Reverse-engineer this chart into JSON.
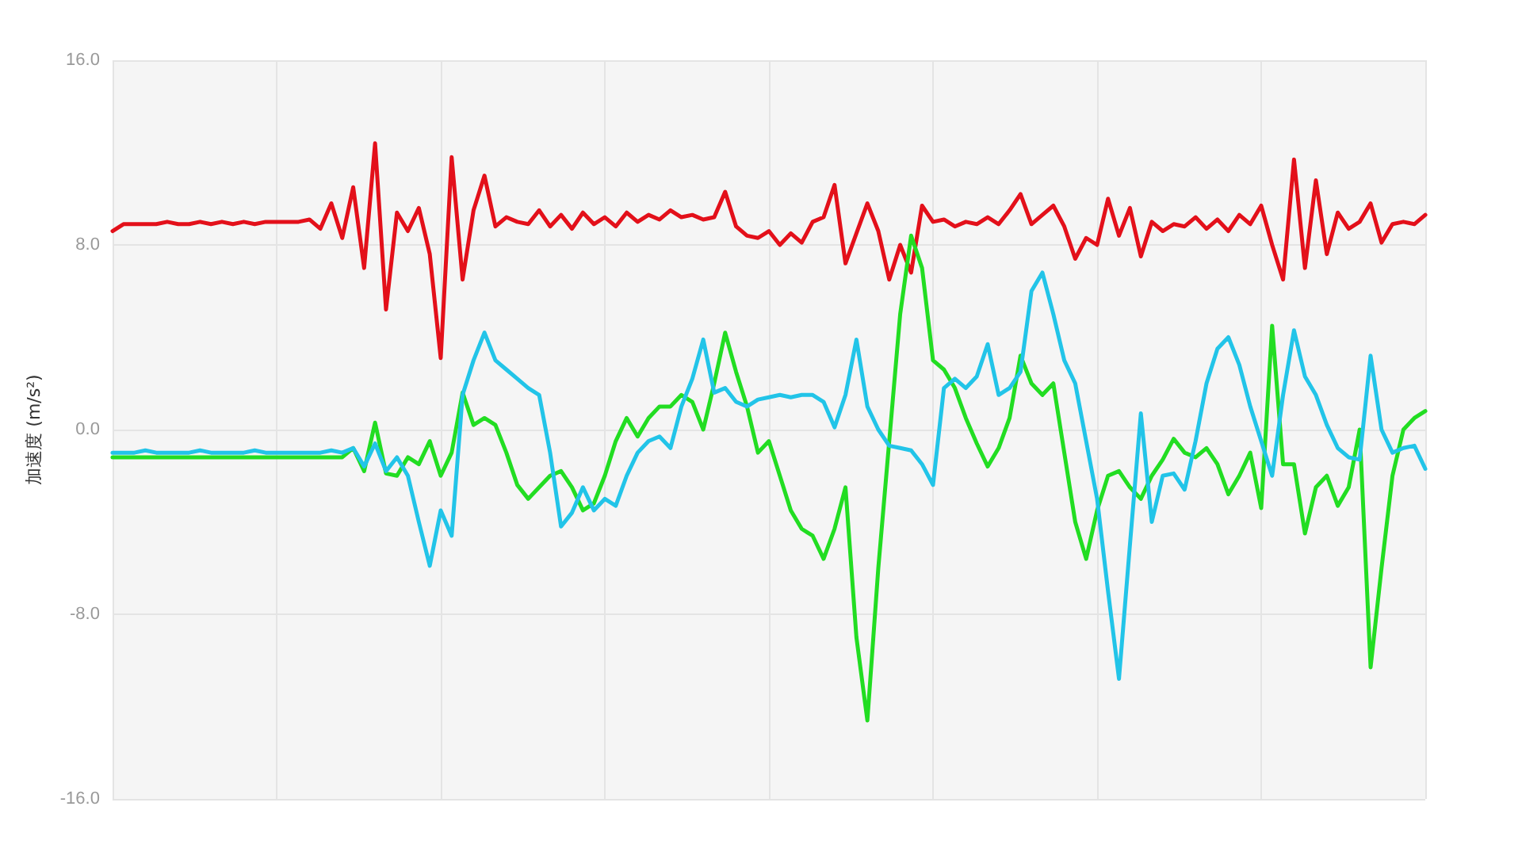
{
  "chart_data": {
    "type": "line",
    "ylabel": "加速度 (m/s²)",
    "categories": [
      null,
      null,
      null,
      null,
      null,
      null,
      null,
      null,
      null,
      null,
      null,
      null,
      null,
      null,
      null,
      null,
      null,
      null,
      null,
      null,
      null,
      null,
      null,
      null,
      null,
      null,
      null,
      null,
      null,
      null,
      null,
      null,
      null,
      null,
      null,
      null,
      null,
      null,
      null,
      null,
      null,
      null,
      null,
      null,
      null,
      null,
      null,
      null,
      null,
      null,
      null,
      null,
      null,
      null,
      null,
      null,
      null,
      null,
      null,
      null,
      null,
      null,
      null,
      null,
      null,
      null,
      null,
      null,
      null,
      null,
      null,
      null,
      null,
      null,
      null,
      null,
      null,
      null,
      null,
      null,
      null,
      null,
      null,
      null,
      null,
      null,
      null,
      null,
      null,
      null,
      null,
      null,
      null,
      null,
      null,
      null,
      null,
      null,
      null,
      null,
      null,
      null,
      null,
      null,
      null,
      null,
      null,
      null,
      null,
      null,
      null,
      null,
      null,
      null,
      null,
      null,
      null,
      null,
      null,
      null,
      null
    ],
    "ylim": [
      -16,
      16
    ],
    "yticks": [
      {
        "value": 16,
        "label": "16.0"
      },
      {
        "value": 8,
        "label": "8.0"
      },
      {
        "value": 0,
        "label": "0.0"
      },
      {
        "value": -8,
        "label": "-8.0"
      },
      {
        "value": -16,
        "label": "-16.0"
      }
    ],
    "grid": true,
    "marker": "none",
    "line_style": "solid",
    "series": [
      {
        "color": "#e3101a",
        "values": [
          8.6,
          8.9,
          8.9,
          8.9,
          8.9,
          9.0,
          8.9,
          8.9,
          9.0,
          8.9,
          9.0,
          8.9,
          9.0,
          8.9,
          9.0,
          9.0,
          9.0,
          9.0,
          9.1,
          8.7,
          9.8,
          8.3,
          10.5,
          7.0,
          12.4,
          5.2,
          9.4,
          8.6,
          9.6,
          7.6,
          3.1,
          11.8,
          6.5,
          9.5,
          11.0,
          8.8,
          9.2,
          9.0,
          8.9,
          9.5,
          8.8,
          9.3,
          8.7,
          9.4,
          8.9,
          9.2,
          8.8,
          9.4,
          9.0,
          9.3,
          9.1,
          9.5,
          9.2,
          9.3,
          9.1,
          9.2,
          10.3,
          8.8,
          8.4,
          8.3,
          8.6,
          8.0,
          8.5,
          8.1,
          9.0,
          9.2,
          10.6,
          7.2,
          8.5,
          9.8,
          8.6,
          6.5,
          8.0,
          6.8,
          9.7,
          9.0,
          9.1,
          8.8,
          9.0,
          8.9,
          9.2,
          8.9,
          9.5,
          10.2,
          8.9,
          9.3,
          9.7,
          8.8,
          7.4,
          8.3,
          8.0,
          10.0,
          8.4,
          9.6,
          7.5,
          9.0,
          8.6,
          8.9,
          8.8,
          9.2,
          8.7,
          9.1,
          8.6,
          9.3,
          8.9,
          9.7,
          8.0,
          6.5,
          11.7,
          7.0,
          10.8,
          7.6,
          9.4,
          8.7,
          9.0,
          9.8,
          8.1,
          8.9,
          9.0,
          8.9,
          9.3
        ]
      },
      {
        "color": "#22dd22",
        "values": [
          -1.2,
          -1.2,
          -1.2,
          -1.2,
          -1.2,
          -1.2,
          -1.2,
          -1.2,
          -1.2,
          -1.2,
          -1.2,
          -1.2,
          -1.2,
          -1.2,
          -1.2,
          -1.2,
          -1.2,
          -1.2,
          -1.2,
          -1.2,
          -1.2,
          -1.2,
          -0.8,
          -1.8,
          0.3,
          -1.9,
          -2.0,
          -1.2,
          -1.5,
          -0.5,
          -2.0,
          -1.0,
          1.6,
          0.2,
          0.5,
          0.2,
          -1.0,
          -2.4,
          -3.0,
          -2.5,
          -2.0,
          -1.8,
          -2.5,
          -3.5,
          -3.2,
          -2.0,
          -0.5,
          0.5,
          -0.3,
          0.5,
          1.0,
          1.0,
          1.5,
          1.2,
          0.0,
          2.0,
          4.2,
          2.5,
          1.0,
          -1.0,
          -0.5,
          -2.0,
          -3.5,
          -4.3,
          -4.6,
          -5.6,
          -4.3,
          -2.5,
          -9.0,
          -12.6,
          -6.0,
          -0.5,
          5.0,
          8.4,
          7.0,
          3.0,
          2.6,
          1.8,
          0.5,
          -0.6,
          -1.6,
          -0.8,
          0.5,
          3.2,
          2.0,
          1.5,
          2.0,
          -1.0,
          -4.0,
          -5.6,
          -3.5,
          -2.0,
          -1.8,
          -2.5,
          -3.0,
          -2.0,
          -1.3,
          -0.4,
          -1.0,
          -1.2,
          -0.8,
          -1.5,
          -2.8,
          -2.0,
          -1.0,
          -3.4,
          4.5,
          -1.5,
          -1.5,
          -4.5,
          -2.5,
          -2.0,
          -3.3,
          -2.5,
          0.0,
          -10.3,
          -6.0,
          -2.0,
          0.0,
          0.5,
          0.8
        ]
      },
      {
        "color": "#22c4e8",
        "values": [
          -1.0,
          -1.0,
          -1.0,
          -0.9,
          -1.0,
          -1.0,
          -1.0,
          -1.0,
          -0.9,
          -1.0,
          -1.0,
          -1.0,
          -1.0,
          -0.9,
          -1.0,
          -1.0,
          -1.0,
          -1.0,
          -1.0,
          -1.0,
          -0.9,
          -1.0,
          -0.8,
          -1.6,
          -0.6,
          -1.8,
          -1.2,
          -2.0,
          -4.0,
          -5.9,
          -3.5,
          -4.6,
          1.5,
          3.0,
          4.2,
          3.0,
          2.6,
          2.2,
          1.8,
          1.5,
          -1.0,
          -4.2,
          -3.6,
          -2.5,
          -3.5,
          -3.0,
          -3.3,
          -2.0,
          -1.0,
          -0.5,
          -0.3,
          -0.8,
          1.0,
          2.2,
          3.9,
          1.6,
          1.8,
          1.2,
          1.0,
          1.3,
          1.4,
          1.5,
          1.4,
          1.5,
          1.5,
          1.2,
          0.1,
          1.5,
          3.9,
          1.0,
          0.0,
          -0.7,
          -0.8,
          -0.9,
          -1.5,
          -2.4,
          1.8,
          2.2,
          1.8,
          2.3,
          3.7,
          1.5,
          1.8,
          2.5,
          6.0,
          6.8,
          5.0,
          3.0,
          2.0,
          -0.5,
          -3.0,
          -7.0,
          -10.8,
          -5.0,
          0.7,
          -4.0,
          -2.0,
          -1.9,
          -2.6,
          -0.5,
          2.0,
          3.5,
          4.0,
          2.8,
          1.0,
          -0.5,
          -2.0,
          1.5,
          4.3,
          2.3,
          1.5,
          0.2,
          -0.8,
          -1.2,
          -1.3,
          3.2,
          0.0,
          -1.0,
          -0.8,
          -0.7,
          -1.7
        ]
      }
    ]
  }
}
